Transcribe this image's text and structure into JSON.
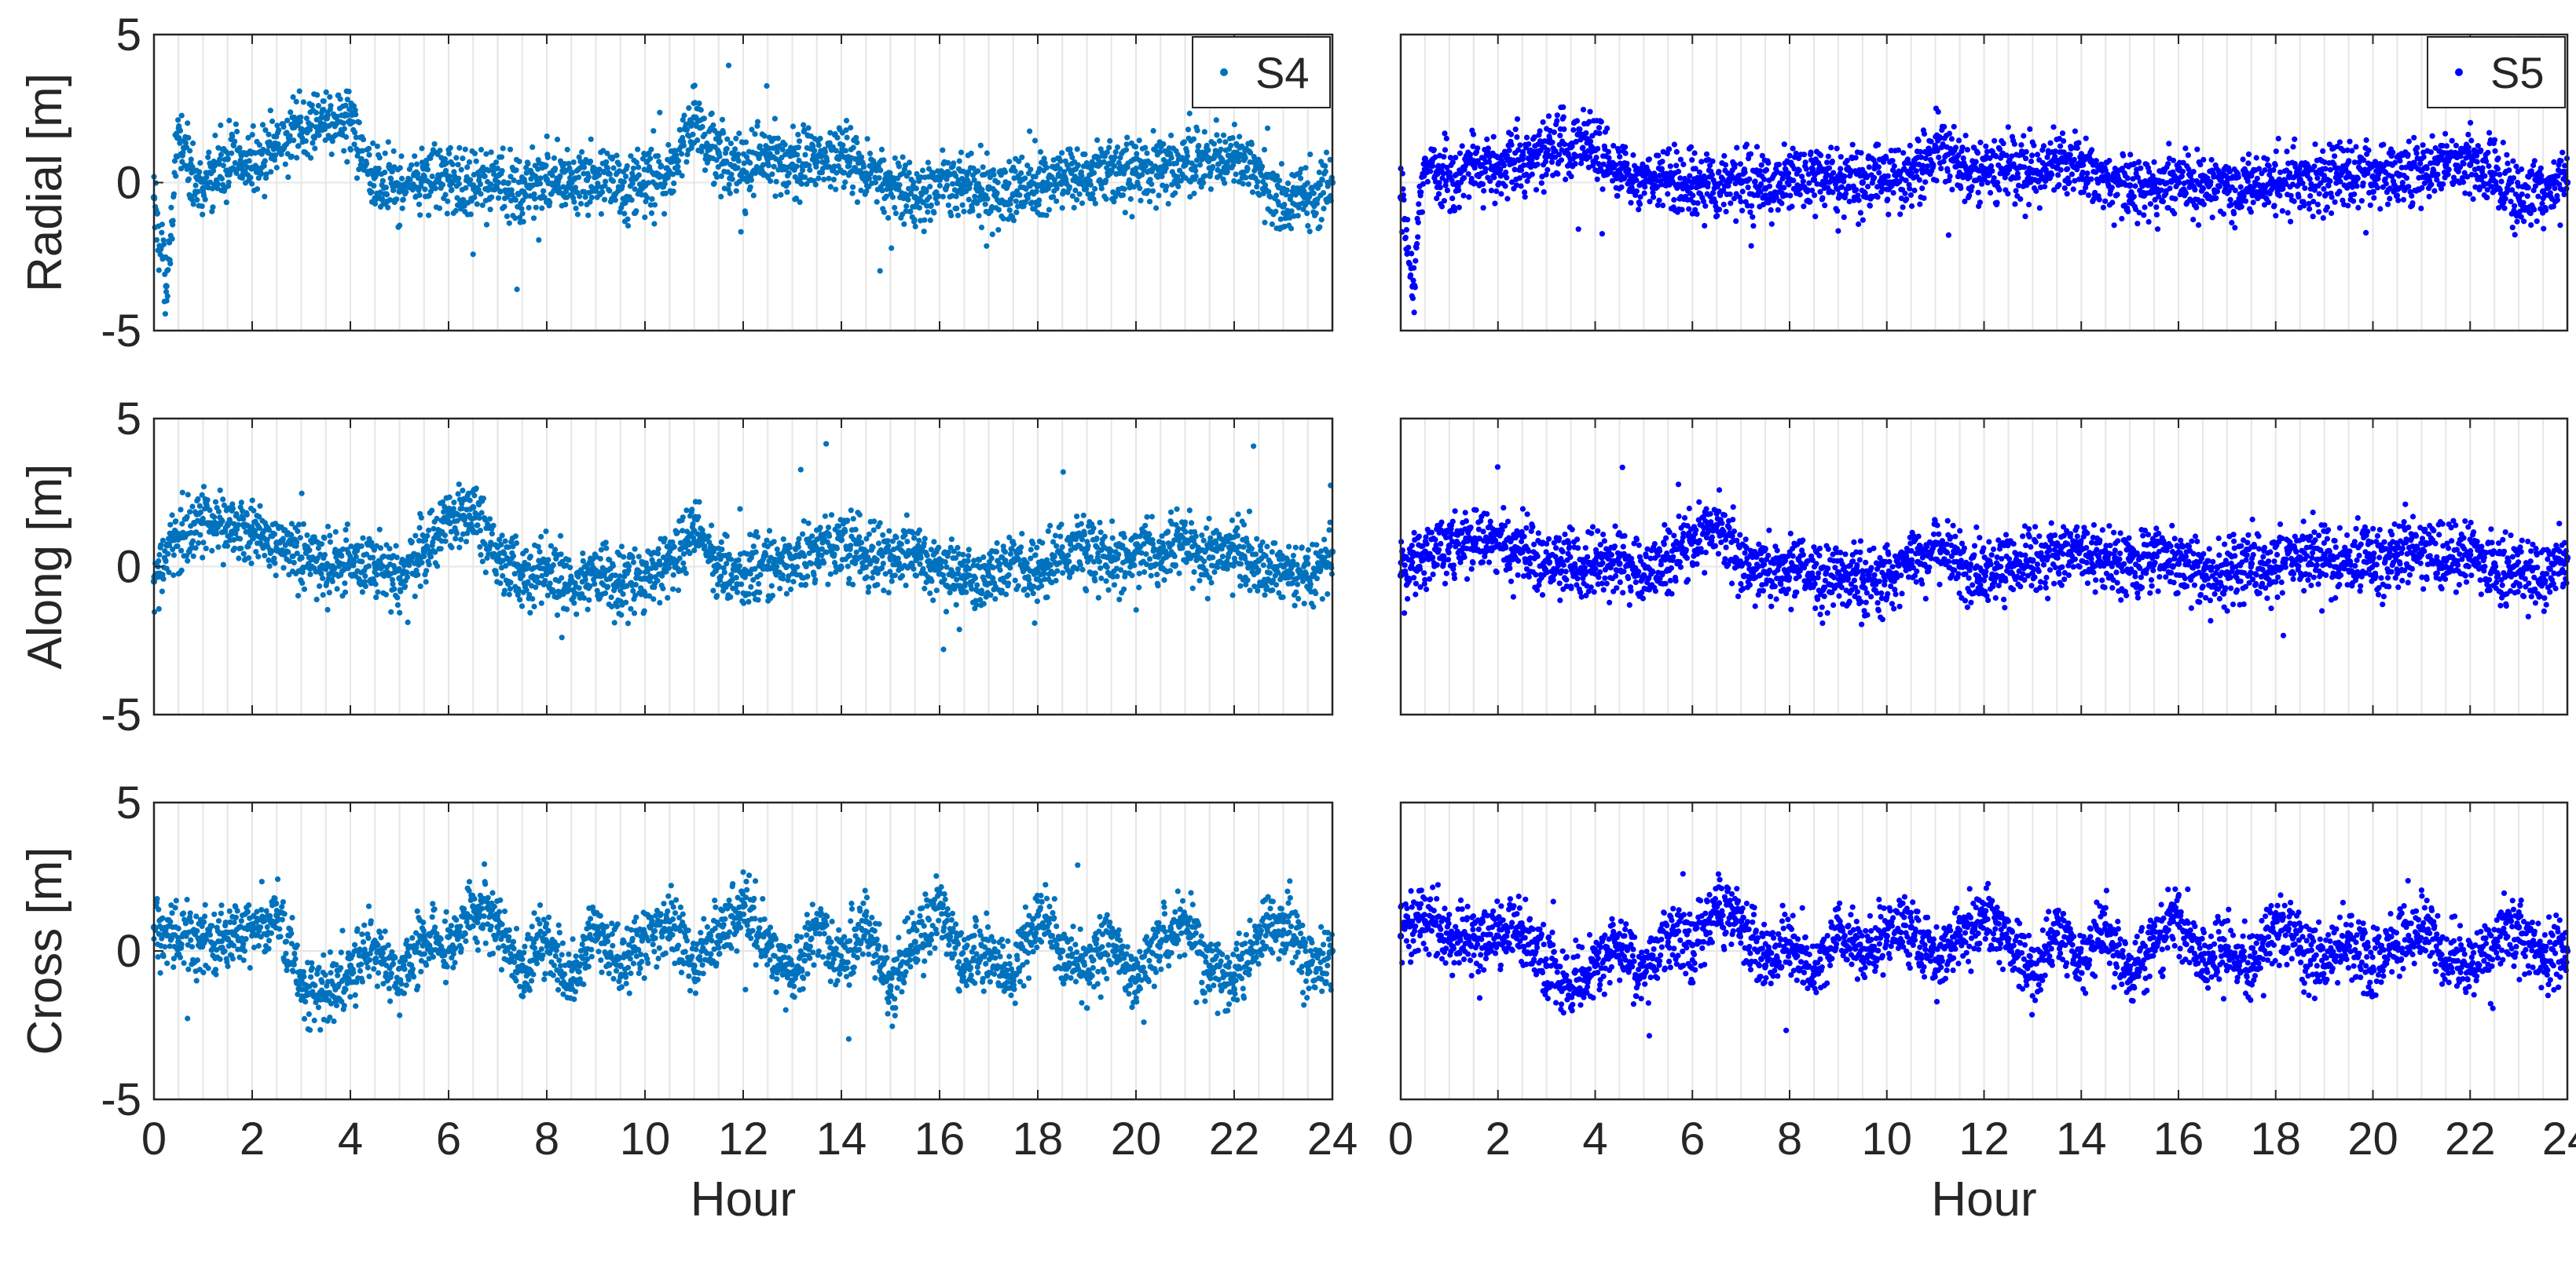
{
  "chart_data": [
    {
      "type": "scatter",
      "panel": "S4 Radial",
      "ylabel": "Radial [m]",
      "xlabel": "",
      "xlim": [
        0,
        24
      ],
      "ylim": [
        -5,
        5
      ],
      "yticks": [
        -5,
        0,
        5
      ],
      "xticks": [],
      "grid": "vertical",
      "legend": {
        "label": "S4",
        "placement": "top-right"
      },
      "color": "#0072BD",
      "series": [
        {
          "name": "S4",
          "x": [
            0,
            0.25,
            0.5,
            0.75,
            1,
            1.5,
            2,
            2.5,
            3,
            3.5,
            4,
            4.5,
            5,
            5.5,
            6,
            6.5,
            7,
            7.5,
            8,
            8.5,
            9,
            9.5,
            10,
            10.5,
            11,
            11.5,
            12,
            12.5,
            13,
            13.5,
            14,
            14.5,
            15,
            15.5,
            16,
            16.5,
            17,
            17.5,
            18,
            18.5,
            19,
            19.5,
            20,
            20.5,
            21,
            21.5,
            22,
            22.5,
            23,
            23.5,
            24
          ],
          "y": [
            -0.5,
            -3.5,
            1.5,
            0.5,
            -0.2,
            0.8,
            0.5,
            1.2,
            1.8,
            2.2,
            2.0,
            0.2,
            -0.3,
            0.2,
            0.1,
            -0.1,
            0.0,
            -0.3,
            0.1,
            0.0,
            0.2,
            -0.2,
            -0.1,
            0.3,
            2.2,
            1.0,
            0.4,
            0.8,
            0.6,
            0.7,
            0.9,
            0.3,
            -0.2,
            -0.5,
            0.1,
            -0.3,
            -0.2,
            -0.4,
            -0.1,
            0.2,
            0.1,
            0.4,
            0.3,
            0.5,
            0.6,
            0.8,
            1.0,
            0.5,
            -0.8,
            -0.5,
            0.0
          ]
        }
      ]
    },
    {
      "type": "scatter",
      "panel": "S5 Radial",
      "ylabel": "",
      "xlabel": "",
      "xlim": [
        0,
        24
      ],
      "ylim": [
        -5,
        5
      ],
      "yticks": [],
      "xticks": [],
      "grid": "vertical",
      "legend": {
        "label": "S5",
        "placement": "top-right"
      },
      "color": "#0000FF",
      "series": [
        {
          "name": "S5",
          "x": [
            0,
            0.25,
            0.5,
            0.75,
            1,
            1.5,
            2,
            2.5,
            3,
            3.5,
            4,
            4.5,
            5,
            5.5,
            6,
            6.5,
            7,
            7.5,
            8,
            8.5,
            9,
            9.5,
            10,
            10.5,
            11,
            11.5,
            12,
            12.5,
            13,
            13.5,
            14,
            14.5,
            15,
            15.5,
            16,
            16.5,
            17,
            17.5,
            18,
            18.5,
            19,
            19.5,
            20,
            20.5,
            21,
            21.5,
            22,
            22.5,
            23,
            23.5,
            24
          ],
          "y": [
            -0.5,
            -3.5,
            0.8,
            0.3,
            0.2,
            0.6,
            0.5,
            0.8,
            1.0,
            1.2,
            1.1,
            0.3,
            0.0,
            0.1,
            0.0,
            -0.1,
            0.0,
            -0.2,
            0.1,
            0.1,
            0.2,
            0.0,
            0.0,
            0.3,
            1.2,
            0.6,
            0.3,
            0.5,
            0.4,
            0.5,
            0.6,
            0.2,
            -0.1,
            -0.3,
            0.0,
            -0.2,
            -0.1,
            -0.2,
            0.0,
            0.1,
            0.1,
            0.3,
            0.2,
            0.3,
            0.4,
            0.6,
            0.6,
            0.3,
            -0.5,
            -0.3,
            0.0
          ]
        }
      ]
    },
    {
      "type": "scatter",
      "panel": "S4 Along",
      "ylabel": "Along [m]",
      "xlabel": "",
      "xlim": [
        0,
        24
      ],
      "ylim": [
        -5,
        5
      ],
      "yticks": [
        -5,
        0,
        5
      ],
      "xticks": [],
      "grid": "vertical",
      "color": "#0072BD",
      "series": [
        {
          "name": "S4",
          "x": [
            0,
            0.5,
            1,
            1.5,
            2,
            2.5,
            3,
            3.5,
            4,
            4.5,
            5,
            5.5,
            6,
            6.5,
            7,
            7.5,
            8,
            8.5,
            9,
            9.5,
            10,
            10.5,
            11,
            11.5,
            12,
            12.5,
            13,
            13.5,
            14,
            14.5,
            15,
            15.5,
            16,
            16.5,
            17,
            17.5,
            18,
            18.5,
            19,
            19.5,
            20,
            20.5,
            21,
            21.5,
            22,
            22.5,
            23,
            23.5,
            24
          ],
          "y": [
            -0.5,
            1.0,
            1.5,
            1.4,
            1.2,
            0.8,
            0.3,
            0.0,
            0.2,
            0.1,
            -0.4,
            0.5,
            1.5,
            2.0,
            0.2,
            -0.3,
            -0.2,
            -0.5,
            -0.3,
            -0.6,
            -0.4,
            0.2,
            1.2,
            0.0,
            -0.3,
            0.0,
            0.3,
            0.6,
            0.9,
            0.5,
            0.3,
            0.5,
            0.0,
            -0.4,
            -0.3,
            0.2,
            -0.2,
            0.4,
            0.6,
            0.2,
            0.5,
            0.6,
            0.8,
            0.3,
            0.6,
            0.2,
            -0.3,
            -0.4,
            0.5
          ]
        }
      ]
    },
    {
      "type": "scatter",
      "panel": "S5 Along",
      "ylabel": "",
      "xlabel": "",
      "xlim": [
        0,
        24
      ],
      "ylim": [
        -5,
        5
      ],
      "yticks": [],
      "xticks": [],
      "grid": "vertical",
      "color": "#0000FF",
      "series": [
        {
          "name": "S5",
          "x": [
            0,
            0.5,
            1,
            1.5,
            2,
            2.5,
            3,
            3.5,
            4,
            4.5,
            5,
            5.5,
            6,
            6.5,
            7,
            7.5,
            8,
            8.5,
            9,
            9.5,
            10,
            10.5,
            11,
            11.5,
            12,
            12.5,
            13,
            13.5,
            14,
            14.5,
            15,
            15.5,
            16,
            16.5,
            17,
            17.5,
            18,
            18.5,
            19,
            19.5,
            20,
            20.5,
            21,
            21.5,
            22,
            22.5,
            23,
            23.5,
            24
          ],
          "y": [
            -0.3,
            0.5,
            0.7,
            0.8,
            0.7,
            0.5,
            0.2,
            0.0,
            0.2,
            0.1,
            -0.3,
            0.3,
            0.9,
            1.4,
            0.1,
            -0.2,
            -0.1,
            -0.4,
            -0.2,
            -0.4,
            -0.3,
            0.1,
            0.8,
            0.0,
            -0.2,
            0.0,
            0.2,
            0.4,
            0.6,
            0.3,
            0.2,
            0.4,
            0.1,
            -0.3,
            -0.2,
            0.1,
            -0.1,
            0.3,
            0.4,
            0.1,
            0.3,
            0.4,
            0.5,
            0.2,
            0.4,
            0.1,
            -0.2,
            -0.4,
            0.3
          ]
        }
      ]
    },
    {
      "type": "scatter",
      "panel": "S4 Cross",
      "ylabel": "Cross [m]",
      "xlabel": "Hour",
      "xlim": [
        0,
        24
      ],
      "ylim": [
        -5,
        5
      ],
      "yticks": [
        -5,
        0,
        5
      ],
      "xticks": [
        0,
        2,
        4,
        6,
        8,
        10,
        12,
        14,
        16,
        18,
        20,
        22,
        24
      ],
      "grid": "vertical",
      "color": "#0072BD",
      "series": [
        {
          "name": "S4",
          "x": [
            0,
            0.5,
            1,
            1.5,
            2,
            2.5,
            3,
            3.5,
            4,
            4.5,
            5,
            5.5,
            6,
            6.5,
            7,
            7.5,
            8,
            8.5,
            9,
            9.5,
            10,
            10.5,
            11,
            11.5,
            12,
            12.5,
            13,
            13.5,
            14,
            14.5,
            15,
            15.5,
            16,
            16.5,
            17,
            17.5,
            18,
            18.5,
            19,
            19.5,
            20,
            20.5,
            21,
            21.5,
            22,
            22.5,
            23,
            23.5,
            24
          ],
          "y": [
            0.8,
            0.3,
            0.5,
            0.4,
            0.8,
            1.2,
            -1.0,
            -1.5,
            -0.5,
            0.2,
            -1.0,
            0.5,
            0.0,
            1.5,
            0.8,
            -0.5,
            0.3,
            -1.0,
            0.8,
            -0.5,
            0.5,
            1.0,
            -0.5,
            0.5,
            1.5,
            0.2,
            -1.0,
            0.8,
            -0.5,
            1.0,
            -1.2,
            0.3,
            1.5,
            -0.5,
            0.0,
            -1.0,
            1.2,
            0.0,
            -0.8,
            0.5,
            -1.0,
            0.3,
            1.0,
            -0.5,
            -0.8,
            0.5,
            1.0,
            -0.5,
            0.0
          ]
        }
      ]
    },
    {
      "type": "scatter",
      "panel": "S5 Cross",
      "ylabel": "",
      "xlabel": "Hour",
      "xlim": [
        0,
        24
      ],
      "ylim": [
        -5,
        5
      ],
      "yticks": [],
      "xticks": [
        0,
        2,
        4,
        6,
        8,
        10,
        12,
        14,
        16,
        18,
        20,
        22,
        24
      ],
      "grid": "vertical",
      "color": "#0000FF",
      "series": [
        {
          "name": "S5",
          "x": [
            0,
            0.5,
            1,
            1.5,
            2,
            2.5,
            3,
            3.5,
            4,
            4.5,
            5,
            5.5,
            6,
            6.5,
            7,
            7.5,
            8,
            8.5,
            9,
            9.5,
            10,
            10.5,
            11,
            11.5,
            12,
            12.5,
            13,
            13.5,
            14,
            14.5,
            15,
            15.5,
            16,
            16.5,
            17,
            17.5,
            18,
            18.5,
            19,
            19.5,
            20,
            20.5,
            21,
            21.5,
            22,
            22.5,
            23,
            23.5,
            24
          ],
          "y": [
            0.5,
            1.0,
            0.3,
            0.5,
            0.5,
            0.8,
            -0.5,
            -1.2,
            -0.5,
            0.2,
            -0.8,
            0.5,
            0.2,
            1.5,
            1.0,
            -0.5,
            0.3,
            -0.8,
            0.8,
            -0.3,
            0.5,
            0.8,
            -0.3,
            0.5,
            1.2,
            0.2,
            -0.8,
            0.6,
            -0.3,
            0.9,
            -1.0,
            0.2,
            1.2,
            -0.3,
            0.0,
            -0.6,
            1.0,
            0.1,
            -0.5,
            0.4,
            -0.6,
            0.2,
            0.8,
            -0.3,
            -0.5,
            0.3,
            0.8,
            -0.3,
            0.0
          ]
        }
      ]
    }
  ]
}
